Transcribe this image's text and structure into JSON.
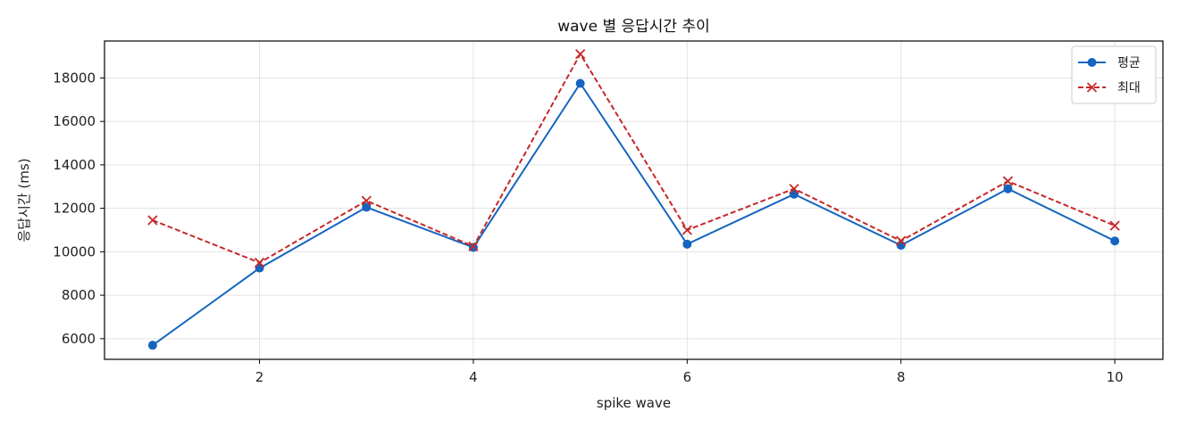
{
  "chart_data": {
    "type": "line",
    "title": "wave 별 응답시간 추이",
    "xlabel": "spike wave",
    "ylabel": "응답시간 (ms)",
    "x": [
      1,
      2,
      3,
      4,
      5,
      6,
      7,
      8,
      9,
      10
    ],
    "xlim": [
      0.55,
      10.45
    ],
    "ylim": [
      5050,
      19700
    ],
    "xticks": [
      2,
      4,
      6,
      8,
      10
    ],
    "yticks": [
      6000,
      8000,
      10000,
      12000,
      14000,
      16000,
      18000
    ],
    "grid": true,
    "legend_position": "top-right",
    "series": [
      {
        "name": "평균",
        "values": [
          5700,
          9250,
          12050,
          10200,
          17750,
          10350,
          12650,
          10300,
          12900,
          10500
        ],
        "color": "#1565c0",
        "line_style": "solid",
        "marker": "circle"
      },
      {
        "name": "최대",
        "values": [
          11450,
          9500,
          12350,
          10250,
          19100,
          11000,
          12900,
          10500,
          13250,
          11200
        ],
        "color": "#c62828",
        "line_style": "dashed",
        "marker": "x"
      }
    ]
  }
}
